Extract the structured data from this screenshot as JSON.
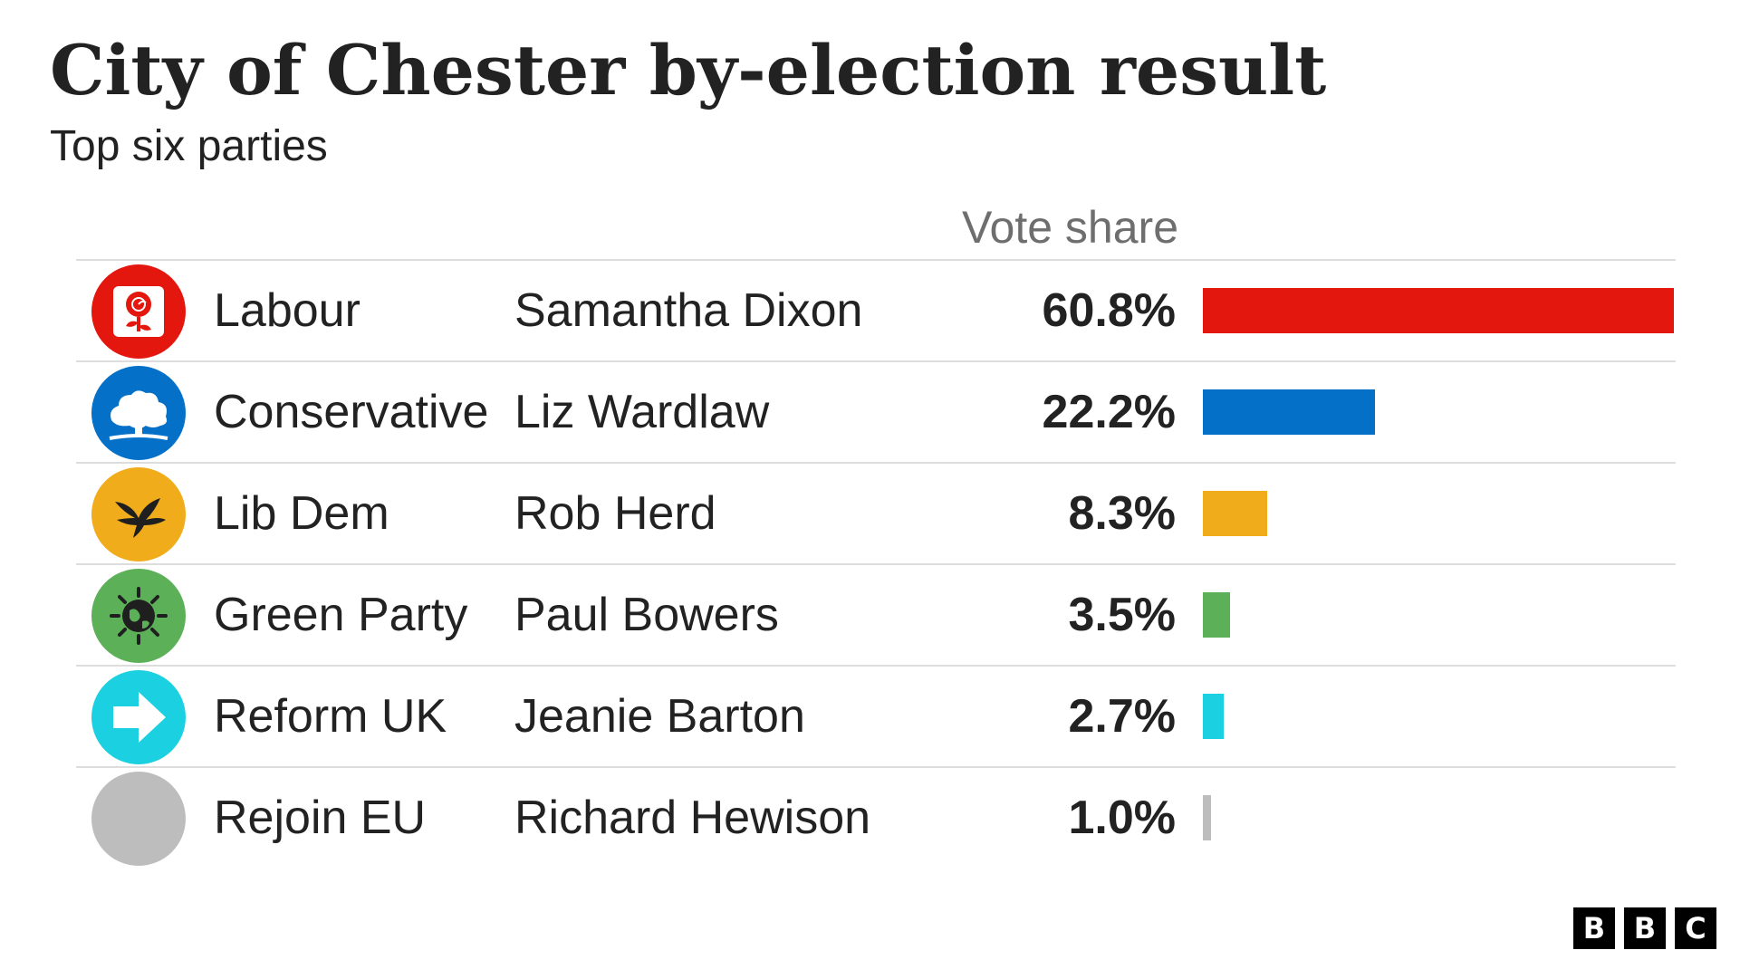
{
  "title": "City of Chester by-election result",
  "subtitle": "Top six parties",
  "column_header": "Vote share",
  "chart_data": {
    "type": "bar",
    "title": "City of Chester by-election result",
    "subtitle": "Top six parties",
    "xlabel": "",
    "ylabel": "Vote share",
    "unit": "%",
    "xlim": [
      0,
      60.8
    ],
    "categories": [
      "Labour",
      "Conservative",
      "Lib Dem",
      "Green Party",
      "Reform UK",
      "Rejoin EU"
    ],
    "candidates": [
      "Samantha Dixon",
      "Liz Wardlaw",
      "Rob Herd",
      "Paul Bowers",
      "Jeanie Barton",
      "Richard Hewison"
    ],
    "values": [
      60.8,
      22.2,
      8.3,
      3.5,
      2.7,
      1.0
    ],
    "value_labels": [
      "60.8%",
      "22.2%",
      "8.3%",
      "3.5%",
      "2.7%",
      "1.0%"
    ],
    "colors": [
      "#e4170f",
      "#0570c8",
      "#f0ac1a",
      "#5cb158",
      "#1bd0e0",
      "#bdbdbd"
    ],
    "icons": [
      "labour-rose-icon",
      "conservative-tree-icon",
      "libdem-bird-icon",
      "green-party-earth-icon",
      "reform-uk-arrow-icon",
      "rejoin-eu-icon"
    ],
    "grid": false,
    "legend": "none"
  },
  "rows": [
    {
      "party": "Labour",
      "candidate": "Samantha Dixon",
      "share": "60.8%"
    },
    {
      "party": "Conservative",
      "candidate": "Liz Wardlaw",
      "share": "22.2%"
    },
    {
      "party": "Lib Dem",
      "candidate": "Rob Herd",
      "share": "8.3%"
    },
    {
      "party": "Green Party",
      "candidate": "Paul Bowers",
      "share": "3.5%"
    },
    {
      "party": "Reform UK",
      "candidate": "Jeanie Barton",
      "share": "2.7%"
    },
    {
      "party": "Rejoin EU",
      "candidate": "Richard Hewison",
      "share": "1.0%"
    }
  ],
  "brand": {
    "letters": [
      "B",
      "B",
      "C"
    ]
  }
}
